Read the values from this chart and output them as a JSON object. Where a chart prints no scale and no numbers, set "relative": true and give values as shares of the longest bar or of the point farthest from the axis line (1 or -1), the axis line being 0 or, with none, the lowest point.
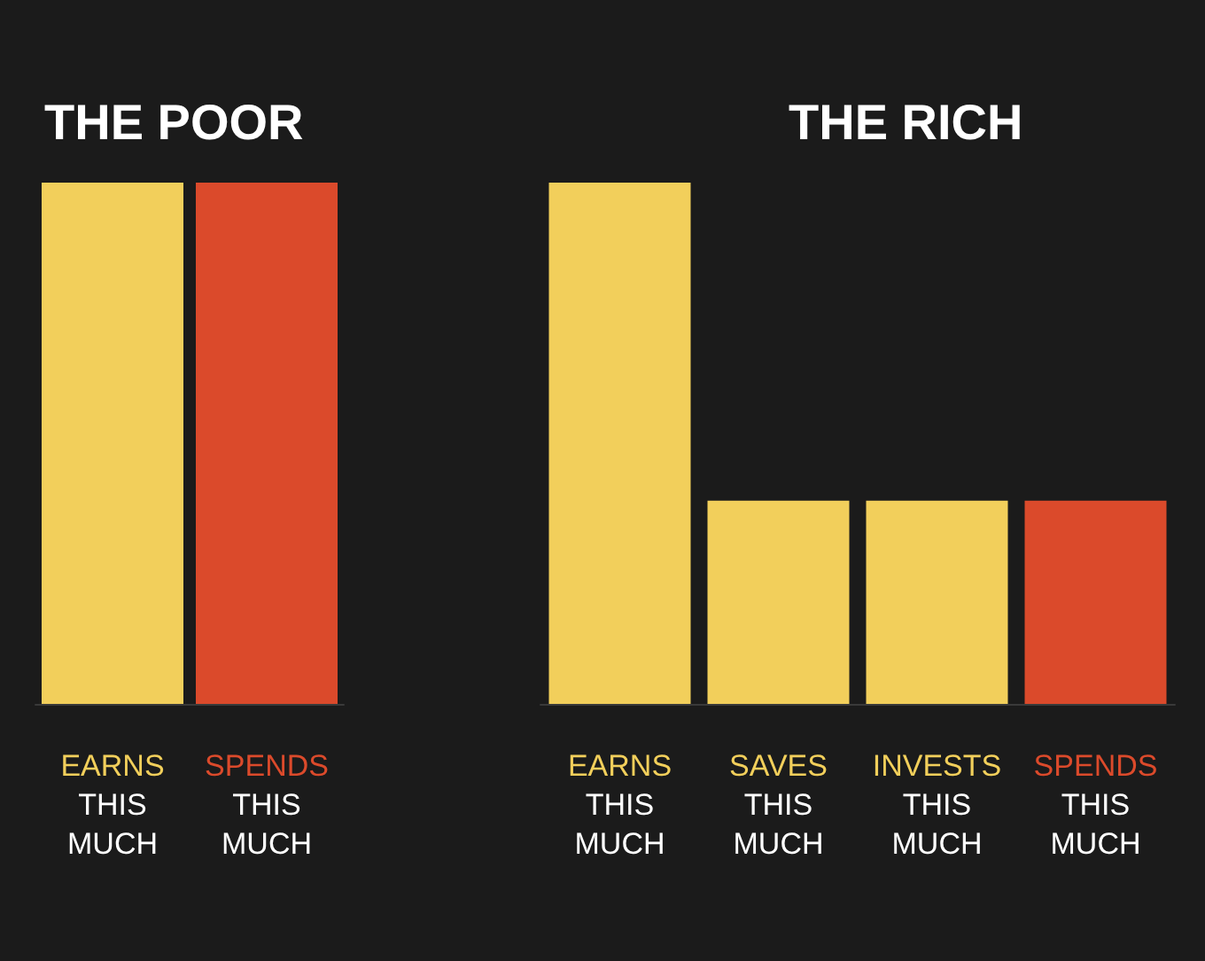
{
  "chart_data": [
    {
      "type": "bar",
      "title": "THE POOR",
      "relative": true,
      "categories": [
        "EARNS\nTHIS\nMUCH",
        "SPENDS\nTHIS\nMUCH"
      ],
      "values": [
        1,
        1
      ],
      "colors": [
        "#f2cf5b",
        "#db4a2b"
      ]
    },
    {
      "type": "bar",
      "title": "THE RICH",
      "relative": true,
      "categories": [
        "EARNS\nTHIS\nMUCH",
        "SAVES\nTHIS\nMUCH",
        "INVESTS\nTHIS\nMUCH",
        "SPENDS\nTHIS\nMUCH"
      ],
      "values": [
        1,
        0.39,
        0.39,
        0.39
      ],
      "colors": [
        "#f2cf5b",
        "#f2cf5b",
        "#f2cf5b",
        "#db4a2b"
      ]
    }
  ]
}
